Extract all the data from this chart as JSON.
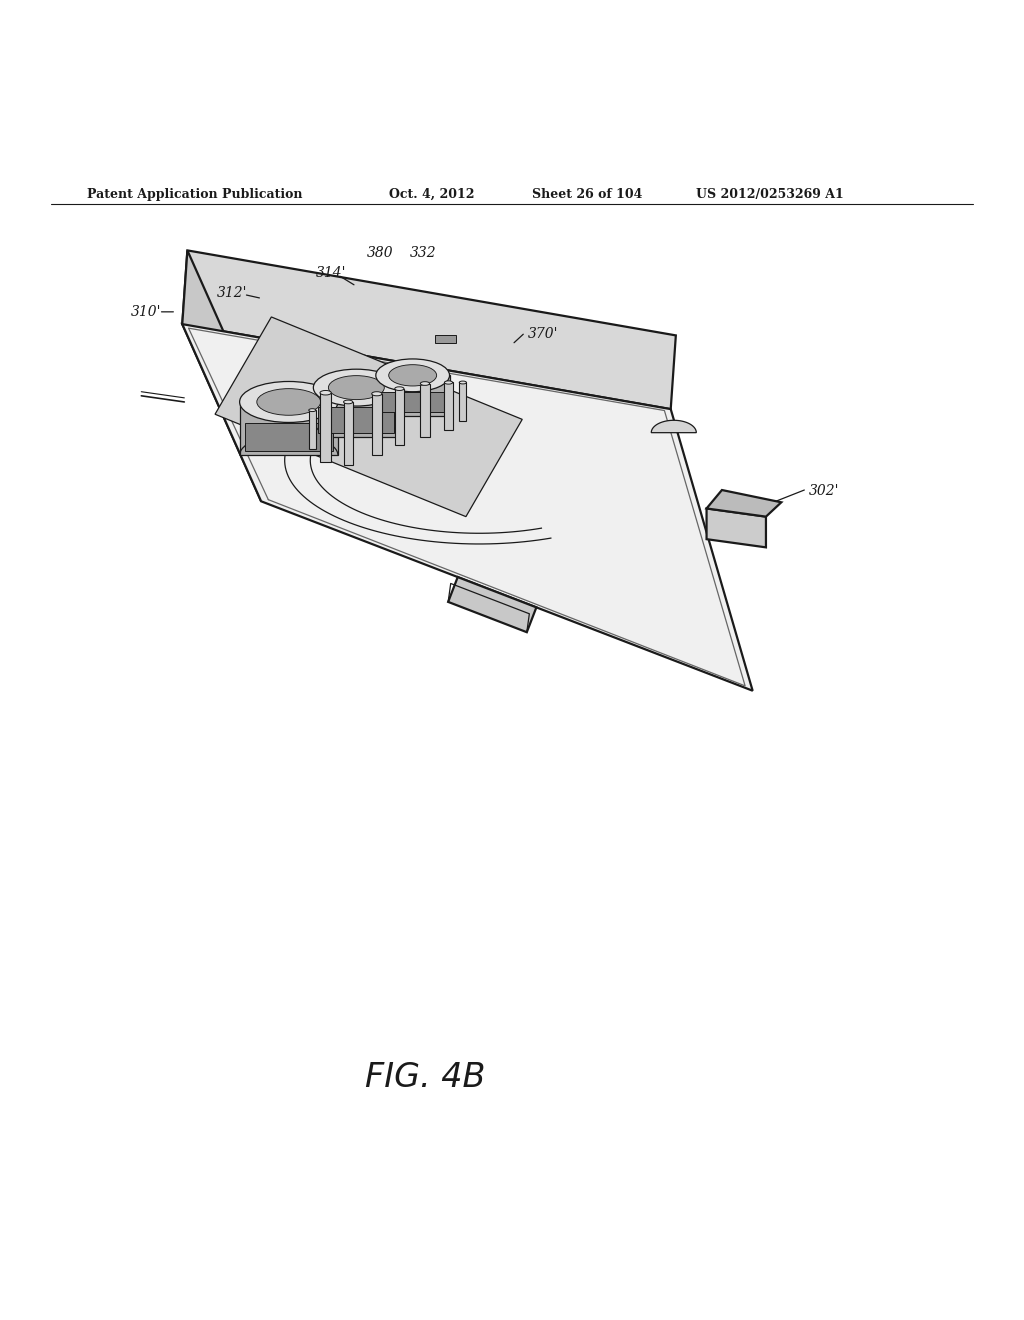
{
  "bg_color": "#ffffff",
  "line_color": "#1a1a1a",
  "header_text": "Patent Application Publication",
  "header_date": "Oct. 4, 2012",
  "header_sheet": "Sheet 26 of 104",
  "header_patent": "US 2012/0253269 A1",
  "fig_label": "FIG. 4B",
  "body_top_face_color": "#f0f0f0",
  "body_front_face_color": "#d8d8d8",
  "body_left_face_color": "#c8c8c8",
  "inner_platform_color": "#d0d0d0",
  "cylinder_top_color": "#e0e0e0",
  "cylinder_side_color": "#b0b0b0",
  "pin_color": "#cccccc",
  "latch_color": "#cccccc"
}
